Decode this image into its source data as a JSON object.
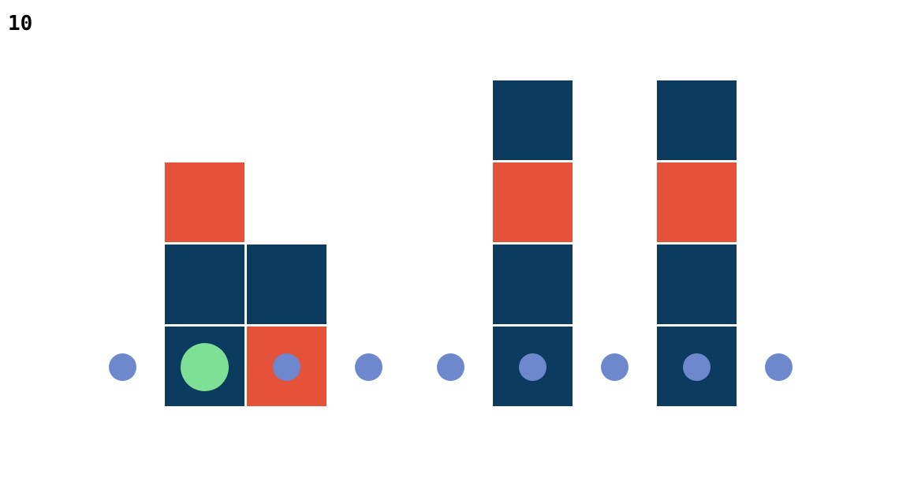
{
  "score": "10",
  "colors": {
    "background": "#ffffff",
    "dark_block": "#0b3c5f",
    "red_block": "#e4523a",
    "blue_dot": "#6d88cc",
    "player": "#7ee094"
  },
  "board": {
    "columns": 9,
    "rows": 4,
    "blocks": [
      {
        "col": 1,
        "row": 0,
        "color": "dark_block"
      },
      {
        "col": 1,
        "row": 1,
        "color": "dark_block"
      },
      {
        "col": 1,
        "row": 2,
        "color": "red_block"
      },
      {
        "col": 2,
        "row": 0,
        "color": "red_block"
      },
      {
        "col": 2,
        "row": 1,
        "color": "dark_block"
      },
      {
        "col": 5,
        "row": 0,
        "color": "dark_block"
      },
      {
        "col": 5,
        "row": 1,
        "color": "dark_block"
      },
      {
        "col": 5,
        "row": 2,
        "color": "red_block"
      },
      {
        "col": 5,
        "row": 3,
        "color": "dark_block"
      },
      {
        "col": 7,
        "row": 0,
        "color": "dark_block"
      },
      {
        "col": 7,
        "row": 1,
        "color": "dark_block"
      },
      {
        "col": 7,
        "row": 2,
        "color": "red_block"
      },
      {
        "col": 7,
        "row": 3,
        "color": "dark_block"
      }
    ],
    "dots": [
      0,
      2,
      3,
      4,
      5,
      6,
      7,
      8
    ],
    "player": {
      "col": 1
    }
  }
}
